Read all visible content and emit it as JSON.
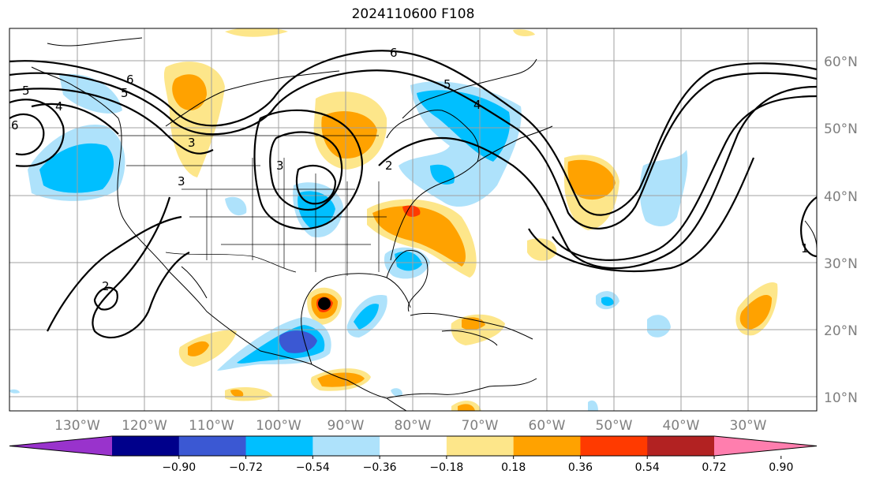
{
  "title": "2024110600 F108",
  "map": {
    "lat_labels": [
      "60°N",
      "50°N",
      "40°N",
      "30°N",
      "20°N",
      "10°N"
    ],
    "lon_labels": [
      "130°W",
      "120°W",
      "110°W",
      "100°W",
      "90°W",
      "80°W",
      "70°W",
      "60°W",
      "50°W",
      "40°W",
      "30°W"
    ],
    "contour_labels": [
      "6",
      "5",
      "4",
      "5",
      "3",
      "3",
      "2",
      "3",
      "2",
      "4",
      "5",
      "6",
      "1",
      "6"
    ]
  },
  "colorbar": {
    "ticks": [
      "−0.90",
      "−0.72",
      "−0.54",
      "−0.36",
      "−0.18",
      "0.18",
      "0.36",
      "0.54",
      "0.72",
      "0.90"
    ],
    "colors": [
      "#9933cc",
      "#00008b",
      "#3b58d3",
      "#00bfff",
      "#aee2fb",
      "#ffffff",
      "#fde68a",
      "#ffa200",
      "#ff3a00",
      "#b22222",
      "#ff7eae"
    ]
  }
}
